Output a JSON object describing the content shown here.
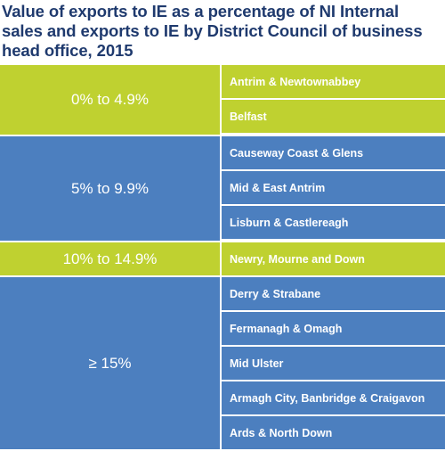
{
  "title": "Value of exports to IE as a percentage of NI Internal sales and exports to IE by District Council of business head office, 2015",
  "colors": {
    "green": "#bfd130",
    "blue": "#4c7fbf",
    "title": "#1f3a6e"
  },
  "groups": [
    {
      "band": "0% to 4.9%",
      "color": "green",
      "councils": [
        "Antrim & Newtownabbey",
        "Belfast"
      ]
    },
    {
      "band": "5% to 9.9%",
      "color": "blue",
      "councils": [
        "Causeway Coast & Glens",
        "Mid & East Antrim",
        "Lisburn & Castlereagh"
      ]
    },
    {
      "band": "10% to 14.9%",
      "color": "green",
      "councils": [
        "Newry, Mourne and Down"
      ]
    },
    {
      "band": "≥ 15%",
      "color": "blue",
      "councils": [
        "Derry & Strabane",
        "Fermanagh & Omagh",
        "Mid Ulster",
        "Armagh City, Banbridge & Craigavon",
        "Ards & North Down"
      ]
    }
  ]
}
